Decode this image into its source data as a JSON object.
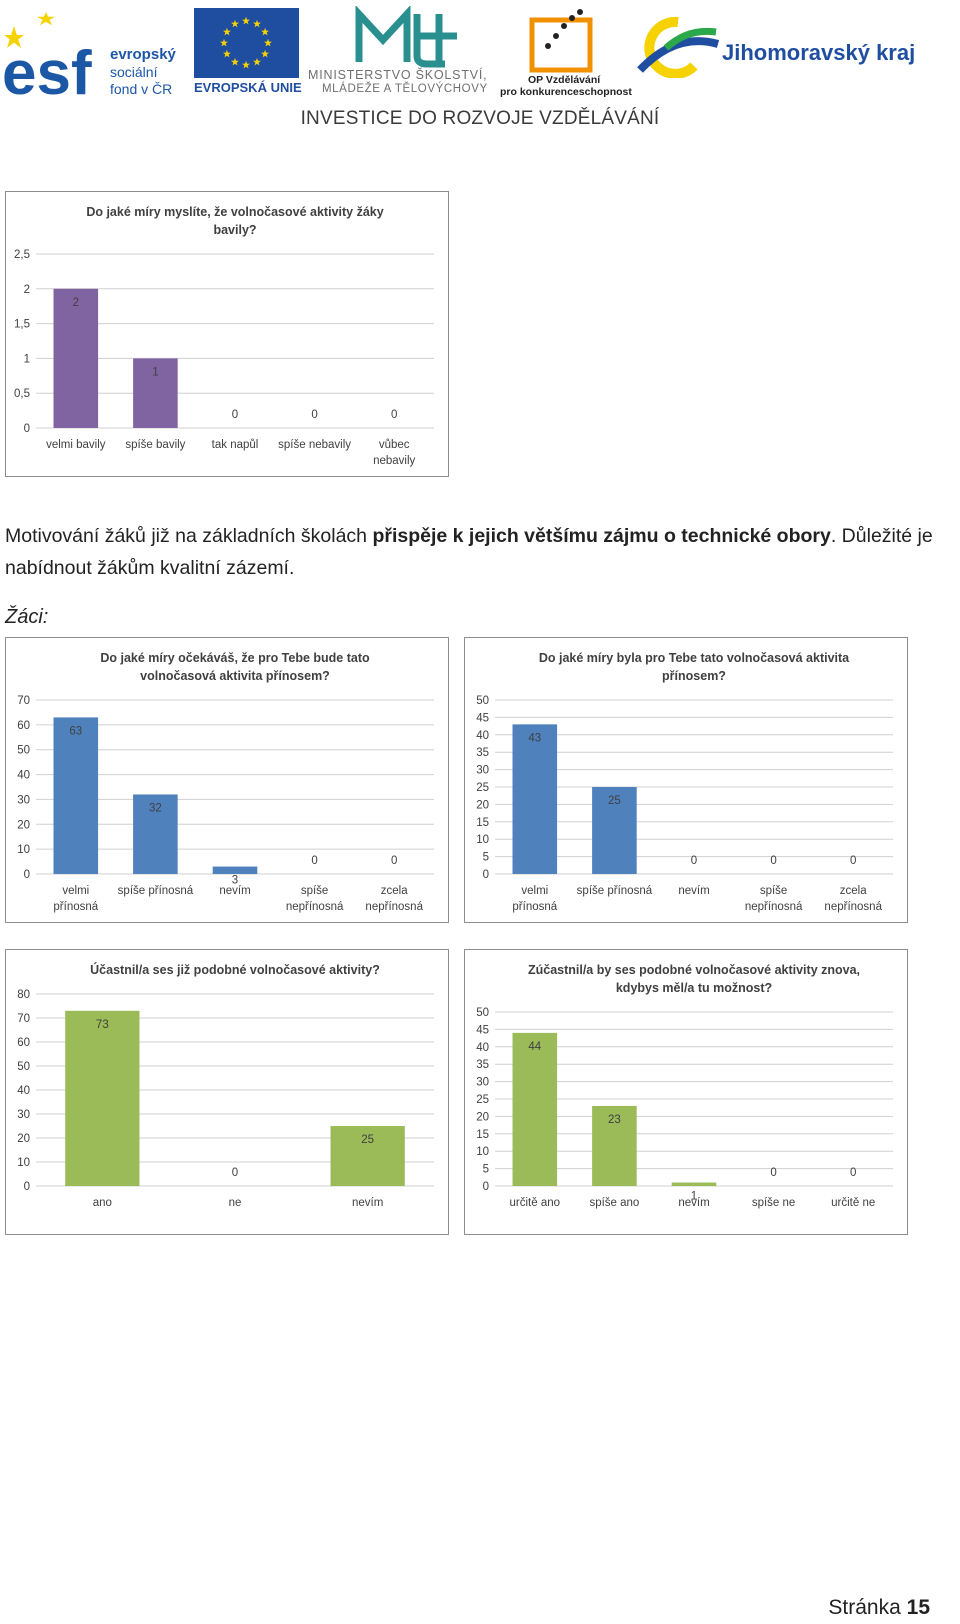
{
  "header": {
    "esf": {
      "letters": "esf",
      "line1": "evropský",
      "line2": "sociální",
      "line3": "fond v ČR"
    },
    "eu": {
      "label": "EVROPSKÁ UNIE"
    },
    "msmt": {
      "line1": "MINISTERSTVO ŠKOLSTVÍ,",
      "line2": "MLÁDEŽE A TĚLOVÝCHOVY"
    },
    "op": {
      "line1": "OP Vzdělávání",
      "line2": "pro konkurenceschopnost"
    },
    "kraj": {
      "label": "Jihomoravský kraj"
    },
    "banner": "INVESTICE DO ROZVOJE VZDĚLÁVÁNÍ"
  },
  "paragraph": {
    "part1": "Motivování žáků již na základních školách ",
    "bold": "přispěje k jejich většímu zájmu o technické obory",
    "part2": ". Důležité je nabídnout žákům kvalitní zázemí."
  },
  "students_label": "Žáci:",
  "footer": {
    "label": "Stránka ",
    "page": "15"
  },
  "colors": {
    "purple": "#8064a2",
    "blue": "#4f81bd",
    "green": "#9bbb59",
    "grid": "#d0d0d0"
  },
  "chart_data": [
    {
      "type": "bar",
      "title": [
        "Do jaké míry myslíte, že volnočasové aktivity žáky",
        "bavily?"
      ],
      "categories": [
        [
          "velmi bavily"
        ],
        [
          "spíše bavily"
        ],
        [
          "tak napůl"
        ],
        [
          "spíše nebavily"
        ],
        [
          "vůbec",
          "nebavily"
        ]
      ],
      "values": [
        2,
        1,
        0,
        0,
        0
      ],
      "value_labels": [
        "2",
        "1",
        "0",
        "0",
        "0"
      ],
      "yticks": [
        "0",
        "0,5",
        "1",
        "1,5",
        "2",
        "2,5"
      ],
      "ylim": [
        0,
        2.5
      ],
      "color": "purple",
      "grid": true
    },
    {
      "type": "bar",
      "title": [
        "Do jaké míry očekáváš, že pro Tebe bude tato",
        "volnočasová aktivita přínosem?"
      ],
      "categories": [
        [
          "velmi",
          "přínosná"
        ],
        [
          "spíše přínosná"
        ],
        [
          "nevím"
        ],
        [
          "spíše",
          "nepřínosná"
        ],
        [
          "zcela",
          "nepřínosná"
        ]
      ],
      "values": [
        63,
        32,
        3,
        0,
        0
      ],
      "value_labels": [
        "63",
        "32",
        "3",
        "0",
        "0"
      ],
      "yticks": [
        "0",
        "10",
        "20",
        "30",
        "40",
        "50",
        "60",
        "70"
      ],
      "ylim": [
        0,
        70
      ],
      "color": "blue",
      "grid": true
    },
    {
      "type": "bar",
      "title": [
        "Do jaké míry byla pro Tebe tato volnočasová aktivita",
        "přínosem?"
      ],
      "categories": [
        [
          "velmi",
          "přínosná"
        ],
        [
          "spíše přínosná"
        ],
        [
          "nevím"
        ],
        [
          "spíše",
          "nepřínosná"
        ],
        [
          "zcela",
          "nepřínosná"
        ]
      ],
      "values": [
        43,
        25,
        0,
        0,
        0
      ],
      "value_labels": [
        "43",
        "25",
        "0",
        "0",
        "0"
      ],
      "yticks": [
        "0",
        "5",
        "10",
        "15",
        "20",
        "25",
        "30",
        "35",
        "40",
        "45",
        "50"
      ],
      "ylim": [
        0,
        50
      ],
      "color": "blue",
      "grid": true
    },
    {
      "type": "bar",
      "title": [
        "Účastnil/a ses již podobné volnočasové aktivity?"
      ],
      "categories": [
        [
          "ano"
        ],
        [
          "ne"
        ],
        [
          "nevím"
        ]
      ],
      "values": [
        73,
        0,
        25
      ],
      "value_labels": [
        "73",
        "0",
        "25"
      ],
      "yticks": [
        "0",
        "10",
        "20",
        "30",
        "40",
        "50",
        "60",
        "70",
        "80"
      ],
      "ylim": [
        0,
        80
      ],
      "color": "green",
      "grid": true
    },
    {
      "type": "bar",
      "title": [
        "Zúčastnil/a by ses podobné volnočasové aktivity znova,",
        "kdybys měl/a tu možnost?"
      ],
      "categories": [
        [
          "určitě ano"
        ],
        [
          "spíše ano"
        ],
        [
          "nevím"
        ],
        [
          "spíše ne"
        ],
        [
          "určitě ne"
        ]
      ],
      "values": [
        44,
        23,
        1,
        0,
        0
      ],
      "value_labels": [
        "44",
        "23",
        "1",
        "0",
        "0"
      ],
      "yticks": [
        "0",
        "5",
        "10",
        "15",
        "20",
        "25",
        "30",
        "35",
        "40",
        "45",
        "50"
      ],
      "ylim": [
        0,
        50
      ],
      "color": "green",
      "grid": true
    }
  ]
}
